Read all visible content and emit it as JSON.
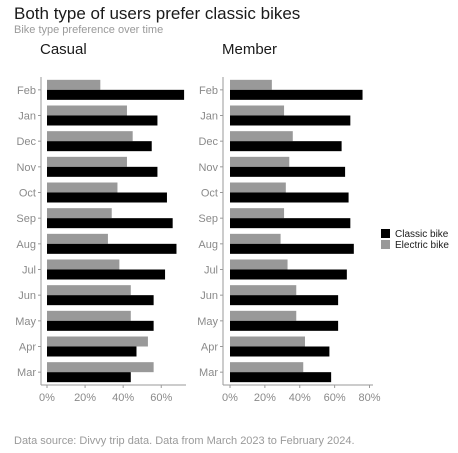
{
  "title": "Both type of users prefer classic bikes",
  "subtitle": "Bike type preference over time",
  "caption": "Data source: Divvy trip data. Data from March 2023 to February 2024.",
  "chart_data": {
    "type": "bar",
    "orientation": "horizontal",
    "categories": [
      "Feb",
      "Jan",
      "Dec",
      "Nov",
      "Oct",
      "Sep",
      "Aug",
      "Jul",
      "Jun",
      "May",
      "Apr",
      "Mar"
    ],
    "legend": {
      "placement": "right",
      "entries": [
        {
          "name": "Classic bike",
          "color": "#000000"
        },
        {
          "name": "Electric bike",
          "color": "#999999"
        }
      ]
    },
    "panels": [
      {
        "title": "Casual",
        "x_ticks": [
          "0%",
          "20%",
          "40%",
          "60%"
        ],
        "x_tick_values": [
          0,
          20,
          40,
          60
        ],
        "xlim": [
          0,
          73
        ],
        "series": [
          {
            "name": "Classic bike",
            "values": [
              72,
              58,
              55,
              58,
              63,
              66,
              68,
              62,
              56,
              56,
              47,
              44
            ]
          },
          {
            "name": "Electric bike",
            "values": [
              28,
              42,
              45,
              42,
              37,
              34,
              32,
              38,
              44,
              44,
              53,
              56
            ]
          }
        ]
      },
      {
        "title": "Member",
        "x_ticks": [
          "0%",
          "20%",
          "40%",
          "60%",
          "80%"
        ],
        "x_tick_values": [
          0,
          20,
          40,
          60,
          80
        ],
        "xlim": [
          0,
          82
        ],
        "series": [
          {
            "name": "Classic bike",
            "values": [
              76,
              69,
              64,
              66,
              68,
              69,
              71,
              67,
              62,
              62,
              57,
              58
            ]
          },
          {
            "name": "Electric bike",
            "values": [
              24,
              31,
              36,
              34,
              32,
              31,
              29,
              33,
              38,
              38,
              43,
              42
            ]
          }
        ]
      }
    ],
    "grid": false
  }
}
